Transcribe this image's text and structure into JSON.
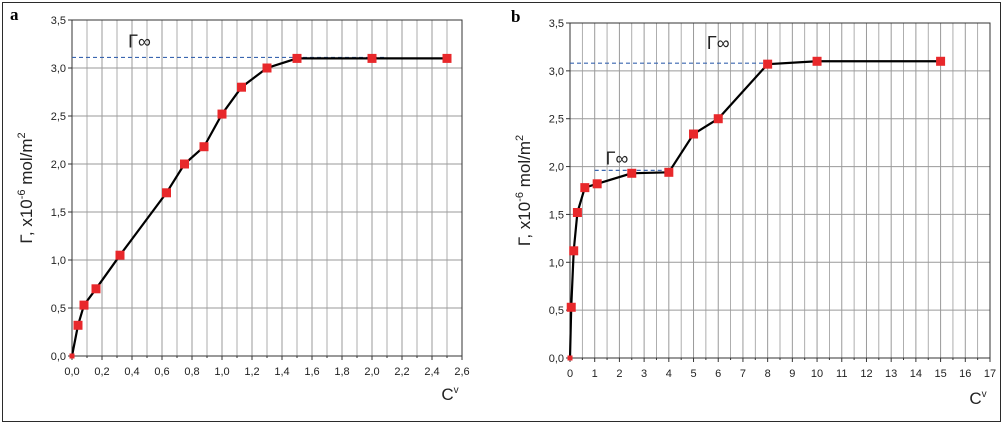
{
  "chart_data": [
    {
      "type": "line",
      "panel_label": "a",
      "xlabel": "C",
      "xlabel_sup": "v",
      "ylabel": "Γ, x10",
      "ylabel_exp": "-6",
      "ylabel_unit": " mol/m",
      "ylabel_unit_exp": "2",
      "xlim": [
        0,
        2.6
      ],
      "ylim": [
        0,
        3.5
      ],
      "x_ticks": [
        "0,0",
        "0,2",
        "0,4",
        "0,6",
        "0,8",
        "1,0",
        "1,2",
        "1,4",
        "1,6",
        "1,8",
        "2,0",
        "2,2",
        "2,4",
        "2,6"
      ],
      "y_ticks": [
        "0,0",
        "0,5",
        "1,0",
        "1,5",
        "2,0",
        "2,5",
        "3,0",
        "3,5"
      ],
      "grid": true,
      "reference_lines": [
        {
          "label": "Γ∞",
          "y": 3.11
        }
      ],
      "series": [
        {
          "x": [
            0.0,
            0.04,
            0.08,
            0.16,
            0.32,
            0.63,
            0.75,
            0.88,
            1.0,
            1.13,
            1.3,
            1.5,
            2.0,
            2.5
          ],
          "y": [
            0.0,
            0.32,
            0.53,
            0.7,
            1.05,
            1.7,
            2.0,
            2.18,
            2.52,
            2.8,
            3.0,
            3.1,
            3.1,
            3.1
          ]
        }
      ]
    },
    {
      "type": "line",
      "panel_label": "b",
      "xlabel": "C",
      "xlabel_sup": "v",
      "ylabel": "Γ, x10",
      "ylabel_exp": "-6",
      "ylabel_unit": " mol/m",
      "ylabel_unit_exp": "2",
      "xlim": [
        0,
        17
      ],
      "ylim": [
        0,
        3.5
      ],
      "x_ticks": [
        "0",
        "1",
        "2",
        "3",
        "4",
        "5",
        "6",
        "7",
        "8",
        "9",
        "10",
        "11",
        "12",
        "13",
        "14",
        "15",
        "16",
        "17"
      ],
      "y_ticks": [
        "0,0",
        "0,5",
        "1,0",
        "1,5",
        "2,0",
        "2,5",
        "3,0",
        "3,5"
      ],
      "grid": true,
      "reference_lines": [
        {
          "label": "Γ∞",
          "y": 1.96,
          "x_start": 1.0,
          "x_end": 4.0
        },
        {
          "label": "Γ∞",
          "y": 3.08
        }
      ],
      "series": [
        {
          "x": [
            0.0,
            0.05,
            0.15,
            0.3,
            0.6,
            1.1,
            2.5,
            4.0,
            5.0,
            6.0,
            8.0,
            10.0,
            15.0
          ],
          "y": [
            0.0,
            0.53,
            1.12,
            1.52,
            1.78,
            1.82,
            1.93,
            1.94,
            2.34,
            2.5,
            3.07,
            3.1,
            3.1
          ]
        }
      ]
    }
  ],
  "style": {
    "line_color": "#000000",
    "marker_color": "#e8282b",
    "grid_color": "#9a9a9a",
    "ref_line_color": "#3a66b0"
  }
}
